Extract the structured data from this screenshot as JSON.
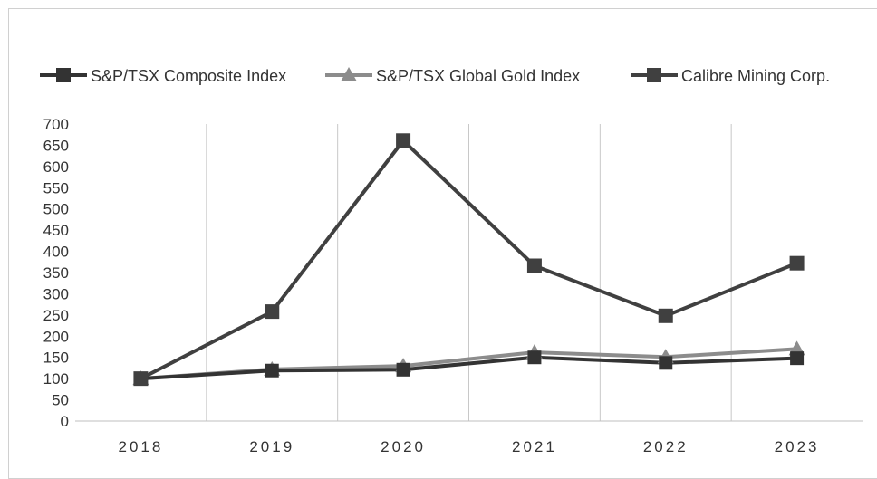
{
  "chart_data": {
    "type": "line",
    "title": "",
    "xlabel": "",
    "ylabel": "",
    "categories": [
      "2018",
      "2019",
      "2020",
      "2021",
      "2022",
      "2023"
    ],
    "ylim": [
      0,
      700
    ],
    "yticks": [
      0,
      50,
      100,
      150,
      200,
      250,
      300,
      350,
      400,
      450,
      500,
      550,
      600,
      650,
      700
    ],
    "grid": "vertical",
    "legend_position": "top",
    "series": [
      {
        "name": "S&P/TSX Composite Index",
        "marker": "square",
        "color": "#333333",
        "values": [
          100,
          119,
          121,
          150,
          137,
          148
        ]
      },
      {
        "name": "S&P/TSX Global Gold Index",
        "marker": "triangle",
        "color": "#8c8c8c",
        "values": [
          100,
          122,
          130,
          162,
          151,
          170
        ]
      },
      {
        "name": "Calibre Mining Corp.",
        "marker": "square",
        "color": "#404040",
        "values": [
          100,
          258,
          661,
          366,
          248,
          372
        ]
      }
    ]
  }
}
